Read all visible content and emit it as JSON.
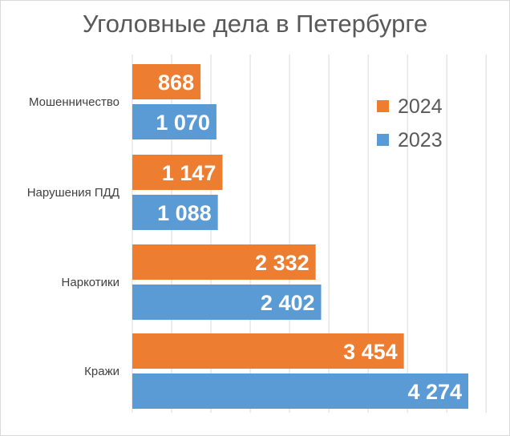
{
  "chart_data": {
    "type": "bar",
    "orientation": "horizontal",
    "title": "Уголовные дела в Петербурге",
    "categories": [
      "Мошенничество",
      "Нарушения ПДД",
      "Наркотики",
      "Кражи"
    ],
    "series": [
      {
        "name": "2024",
        "color": "#ED7D31",
        "values": [
          868,
          1147,
          2332,
          3454
        ],
        "labels": [
          "868",
          "1 147",
          "2 332",
          "3 454"
        ]
      },
      {
        "name": "2023",
        "color": "#5B9BD5",
        "values": [
          1070,
          1088,
          2402,
          4274
        ],
        "labels": [
          "1 070",
          "1 088",
          "2 402",
          "4 274"
        ]
      }
    ],
    "xlim": [
      0,
      4600
    ],
    "grid": true,
    "legend_position": "top-right",
    "gridline_color": "#d9d9d9"
  }
}
